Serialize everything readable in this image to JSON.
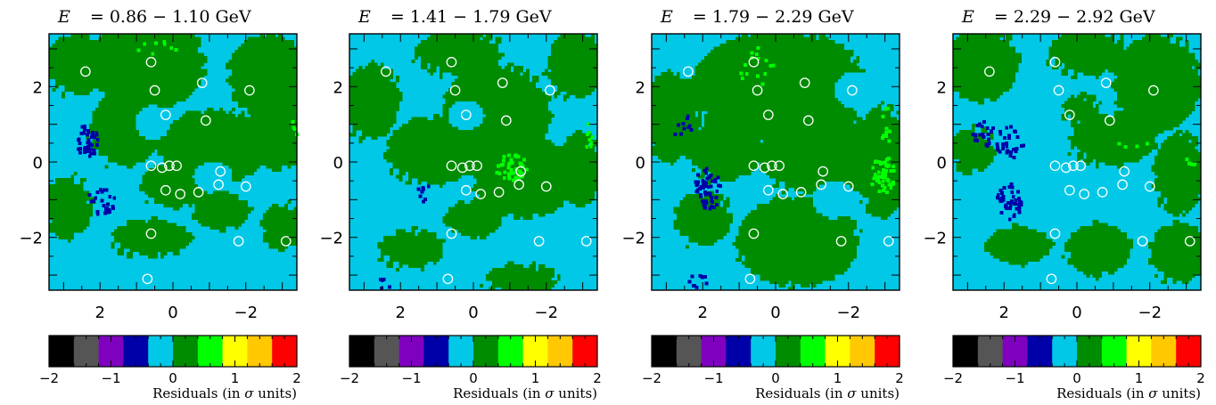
{
  "figure": {
    "panels": [
      {
        "energy_label": "E",
        "energy_range": "= 0.86 − 1.10 GeV"
      },
      {
        "energy_label": "E",
        "energy_range": "= 1.41 − 1.79 GeV"
      },
      {
        "energy_label": "E",
        "energy_range": "= 1.79 − 2.29 GeV"
      },
      {
        "energy_label": "E",
        "energy_range": "= 2.29 − 2.92 GeV"
      }
    ],
    "colorbar_label_prefix": "Residuals (in ",
    "colorbar_label_sigma": "σ",
    "colorbar_label_suffix": " units)"
  },
  "chart_data": {
    "type": "heatmap",
    "xlim": [
      3.4,
      -3.4
    ],
    "ylim": [
      -3.4,
      3.4
    ],
    "x_ticks": [
      "2",
      "0",
      "−2"
    ],
    "y_ticks": [
      "2",
      "0",
      "−2"
    ],
    "colorbar": {
      "range": [
        -2,
        2
      ],
      "tick_labels": [
        "−2",
        "−1",
        "0",
        "1",
        "2"
      ],
      "colors": [
        "#000000",
        "#555555",
        "#7f00bf",
        "#0000a8",
        "#00c8e6",
        "#008c00",
        "#00ff00",
        "#ffff00",
        "#ffc800",
        "#ff0000"
      ]
    },
    "sources": [
      [
        2.4,
        2.4
      ],
      [
        0.6,
        2.65
      ],
      [
        -0.8,
        2.1
      ],
      [
        -2.1,
        1.9
      ],
      [
        0.5,
        1.9
      ],
      [
        0.2,
        1.25
      ],
      [
        -0.9,
        1.1
      ],
      [
        0.1,
        -0.1
      ],
      [
        0.3,
        -0.15
      ],
      [
        -0.1,
        -0.1
      ],
      [
        0.6,
        -0.1
      ],
      [
        -1.3,
        -0.25
      ],
      [
        -2.0,
        -0.65
      ],
      [
        -0.7,
        -0.8
      ],
      [
        -1.25,
        -0.6
      ],
      [
        -0.2,
        -0.85
      ],
      [
        0.2,
        -0.75
      ],
      [
        0.6,
        -1.9
      ],
      [
        -1.8,
        -2.1
      ],
      [
        -3.1,
        -2.1
      ],
      [
        0.7,
        -3.1
      ]
    ],
    "panels": [
      {
        "range": "0.86 − 1.10 GeV",
        "background": "cyan",
        "green_blobs": [
          [
            0.7,
            2.6,
            1.6,
            1.2
          ],
          [
            2.6,
            2.6,
            0.9,
            0.8
          ],
          [
            -2.6,
            2.3,
            1.1,
            1.1
          ],
          [
            -2.9,
            0.8,
            0.9,
            1.0
          ],
          [
            -1.1,
            0.4,
            1.5,
            1.0
          ],
          [
            1.3,
            0.9,
            1.0,
            1.0
          ],
          [
            -0.1,
            -0.6,
            1.0,
            0.6
          ],
          [
            2.9,
            -1.2,
            0.7,
            0.8
          ],
          [
            -1.3,
            -1.3,
            0.8,
            0.5
          ],
          [
            -3.0,
            -1.7,
            0.6,
            0.6
          ],
          [
            0.6,
            -2.0,
            1.1,
            0.5
          ]
        ],
        "cyan_blobs": [
          [
            0.55,
            1.05,
            0.5,
            0.45
          ],
          [
            -1.1,
            -0.4,
            0.55,
            0.4
          ]
        ],
        "blue_clusters": [
          [
            2.4,
            0.6,
            0.3,
            0.45,
            44
          ],
          [
            2.0,
            -1.0,
            0.4,
            0.35,
            25
          ]
        ],
        "lightgreen_clusters": [
          [
            0.5,
            3.05,
            0.6,
            0.25,
            8
          ],
          [
            -3.3,
            0.9,
            0.1,
            0.3,
            4
          ]
        ]
      },
      {
        "range": "1.41 − 1.79 GeV",
        "background": "cyan",
        "green_blobs": [
          [
            -0.6,
            1.2,
            1.5,
            1.4
          ],
          [
            -1.4,
            -0.4,
            1.4,
            1.1
          ],
          [
            1.1,
            0.3,
            1.3,
            0.9
          ],
          [
            0.4,
            2.9,
            1.2,
            0.6
          ],
          [
            2.8,
            1.6,
            0.8,
            1.0
          ],
          [
            -2.8,
            2.6,
            0.8,
            0.9
          ],
          [
            -2.9,
            -0.2,
            0.6,
            1.0
          ],
          [
            1.7,
            -2.3,
            0.9,
            0.5
          ],
          [
            -1.3,
            -3.1,
            1.0,
            0.4
          ],
          [
            0.0,
            -1.5,
            0.8,
            0.5
          ]
        ],
        "cyan_blobs": [
          [
            0.2,
            1.25,
            0.5,
            0.4
          ]
        ],
        "blue_clusters": [
          [
            1.4,
            -0.8,
            0.2,
            0.25,
            8
          ],
          [
            2.6,
            -3.2,
            0.3,
            0.15,
            5
          ]
        ],
        "lightgreen_clusters": [
          [
            -1.0,
            -0.1,
            0.45,
            0.35,
            42
          ],
          [
            -3.1,
            0.7,
            0.15,
            0.4,
            8
          ]
        ]
      },
      {
        "range": "1.79 − 2.29 GeV",
        "background": "cyan",
        "green_blobs": [
          [
            -0.1,
            2.0,
            2.4,
            1.5
          ],
          [
            -1.3,
            0.2,
            1.8,
            1.1
          ],
          [
            1.4,
            0.3,
            1.0,
            0.8
          ],
          [
            -0.6,
            -2.1,
            1.7,
            1.2
          ],
          [
            2.9,
            1.2,
            0.8,
            1.2
          ],
          [
            2.0,
            -1.5,
            0.8,
            0.7
          ],
          [
            -2.9,
            0.0,
            0.7,
            1.5
          ]
        ],
        "cyan_blobs": [
          [
            -2.2,
            1.9,
            0.6,
            0.5
          ],
          [
            -1.6,
            -1.0,
            0.6,
            0.5
          ]
        ],
        "blue_clusters": [
          [
            1.9,
            -0.65,
            0.35,
            0.6,
            55
          ],
          [
            2.6,
            0.95,
            0.25,
            0.4,
            10
          ],
          [
            2.2,
            -3.1,
            0.3,
            0.2,
            10
          ]
        ],
        "lightgreen_clusters": [
          [
            -2.9,
            -0.3,
            0.35,
            0.5,
            50
          ],
          [
            -3.0,
            1.0,
            0.15,
            0.5,
            10
          ],
          [
            0.6,
            2.6,
            0.5,
            0.6,
            15
          ]
        ]
      },
      {
        "range": "2.29 − 2.92 GeV",
        "background": "cyan",
        "green_blobs": [
          [
            2.6,
            2.6,
            1.0,
            1.0
          ],
          [
            -0.3,
            2.9,
            1.1,
            0.6
          ],
          [
            -2.2,
            2.1,
            1.2,
            1.3
          ],
          [
            -1.0,
            0.6,
            1.2,
            0.7
          ],
          [
            2.9,
            0.3,
            0.6,
            0.6
          ],
          [
            -2.8,
            -0.3,
            0.7,
            1.1
          ],
          [
            1.6,
            -2.2,
            0.9,
            0.5
          ],
          [
            -0.6,
            -2.3,
            0.9,
            0.7
          ],
          [
            -2.8,
            -2.4,
            0.8,
            0.8
          ],
          [
            -0.1,
            1.4,
            0.5,
            0.4
          ]
        ],
        "cyan_blobs": [],
        "blue_clusters": [
          [
            2.6,
            0.8,
            0.3,
            0.35,
            22
          ],
          [
            1.9,
            0.6,
            0.4,
            0.5,
            30
          ],
          [
            1.9,
            -1.0,
            0.35,
            0.5,
            42
          ]
        ],
        "lightgreen_clusters": [
          [
            -3.1,
            0.0,
            0.2,
            0.3,
            6
          ],
          [
            -1.5,
            0.5,
            0.5,
            0.1,
            4
          ]
        ]
      }
    ]
  }
}
